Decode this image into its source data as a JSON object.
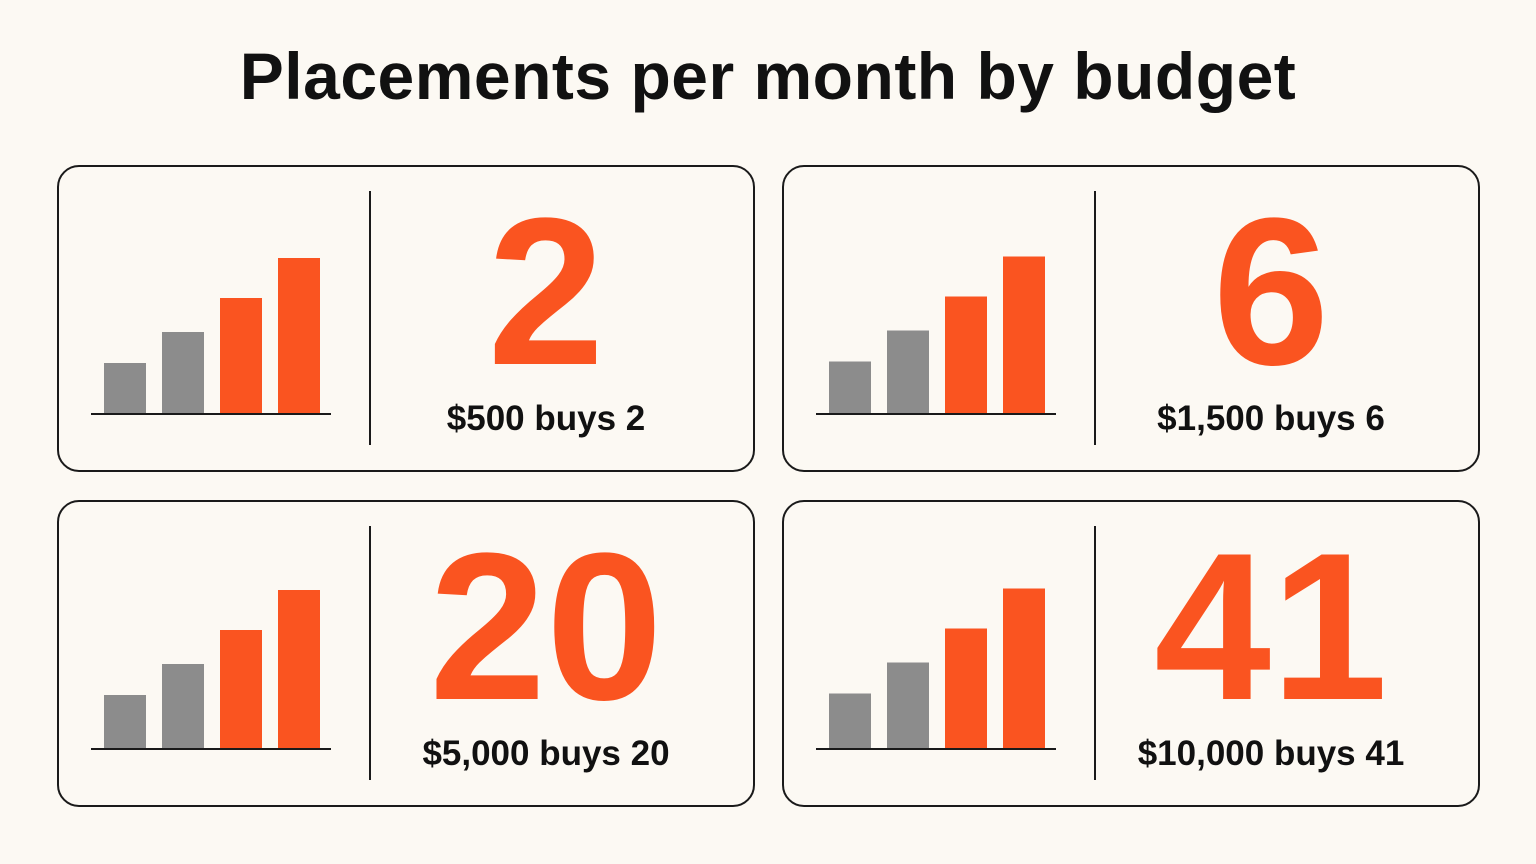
{
  "title": "Placements per month by budget",
  "cards": [
    {
      "value": 2,
      "caption": "$500 buys 2"
    },
    {
      "value": 6,
      "caption": "$1,500 buys 6"
    },
    {
      "value": 20,
      "caption": "$5,000 buys 20"
    },
    {
      "value": 41,
      "caption": "$10,000 buys 41"
    }
  ]
}
